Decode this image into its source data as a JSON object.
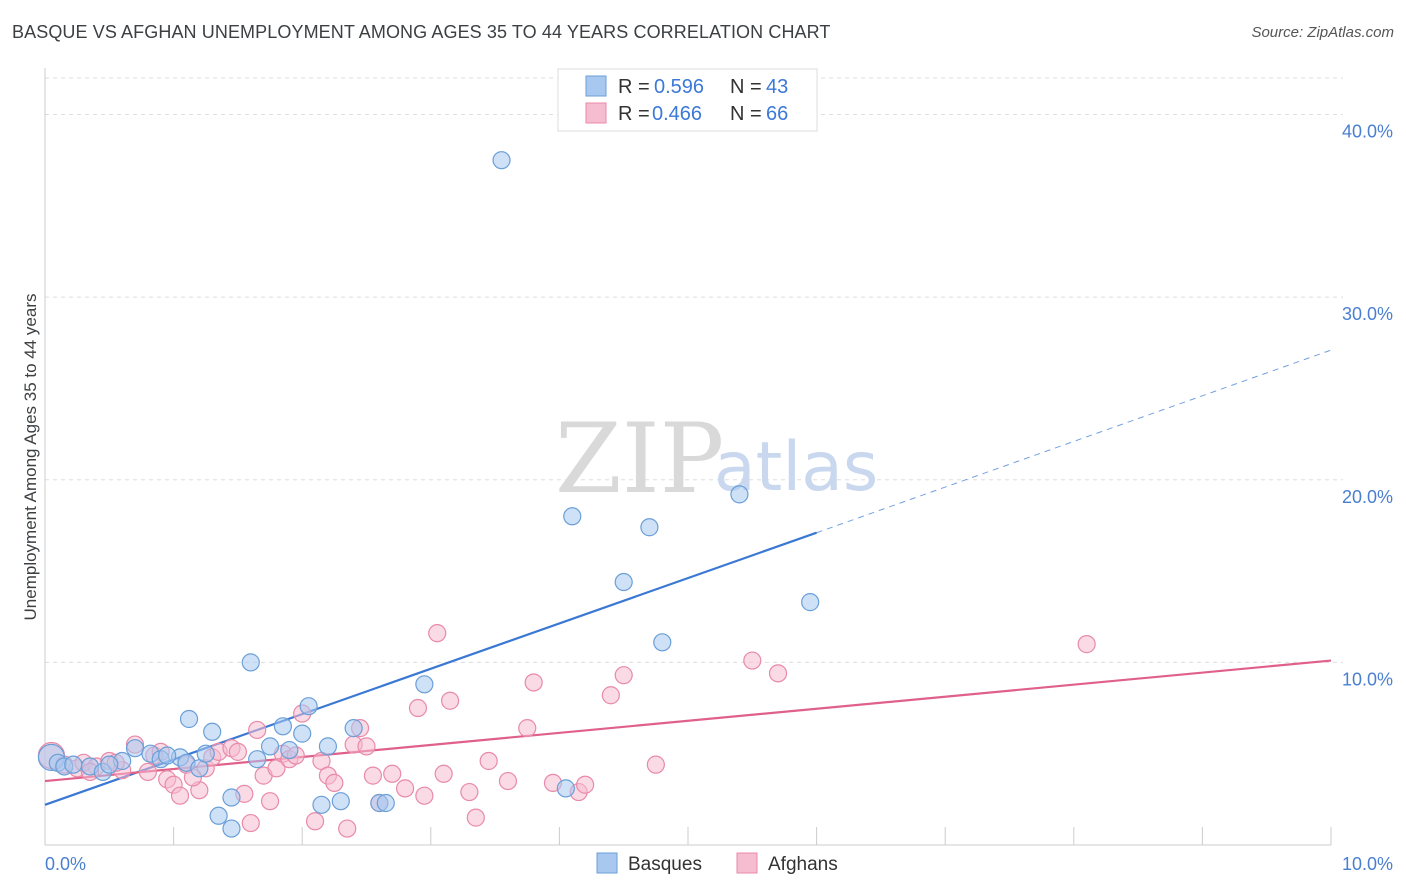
{
  "title": "BASQUE VS AFGHAN UNEMPLOYMENT AMONG AGES 35 TO 44 YEARS CORRELATION CHART",
  "source": "Source: ZipAtlas.com",
  "watermark": {
    "zip": "ZIP",
    "atlas": "atlas"
  },
  "legend_top": {
    "r_label": "R =",
    "n_label": "N =",
    "rows": [
      {
        "series": "Basques",
        "r": "0.596",
        "n": "43"
      },
      {
        "series": "Afghans",
        "r": "0.466",
        "n": "66"
      }
    ]
  },
  "colors": {
    "blue_fill": "#a8c8f0",
    "blue_stroke": "#6a9fd8",
    "blue_line": "#3a78d4",
    "pink_fill": "#f6bcd0",
    "pink_stroke": "#e88aa8",
    "pink_line": "#e0608a",
    "grid": "#dddddd",
    "tick_label": "#4a7fd0"
  },
  "chart_data": {
    "type": "scatter",
    "title": "BASQUE VS AFGHAN UNEMPLOYMENT AMONG AGES 35 TO 44 YEARS CORRELATION CHART",
    "xlabel": "",
    "ylabel": "Unemployment Among Ages 35 to 44 years",
    "xlim": [
      0,
      10
    ],
    "ylim": [
      0,
      42
    ],
    "x_tick_labels": [
      {
        "value": 0,
        "label": "0.0%"
      },
      {
        "value": 10,
        "label": "10.0%"
      }
    ],
    "y_tick_labels": [
      {
        "value": 10,
        "label": "10.0%"
      },
      {
        "value": 20,
        "label": "20.0%"
      },
      {
        "value": 30,
        "label": "30.0%"
      },
      {
        "value": 40,
        "label": "40.0%"
      }
    ],
    "y_grid": [
      10,
      20,
      30,
      40,
      42
    ],
    "x_minor_ticks": [
      1,
      2,
      3,
      4,
      5,
      6,
      7,
      8,
      9,
      10
    ],
    "legend_position": "top-center",
    "series": [
      {
        "name": "Basques",
        "r": 0.596,
        "n": 43,
        "trend": {
          "x0": 0,
          "y0": 2.2,
          "x1": 6,
          "y1": 17.1,
          "dashed_to_x": 10,
          "dashed_to_y": 27.1
        },
        "points": [
          [
            0.05,
            4.8
          ],
          [
            0.1,
            4.5
          ],
          [
            0.15,
            4.3
          ],
          [
            0.22,
            4.4
          ],
          [
            0.35,
            4.3
          ],
          [
            0.45,
            4.0
          ],
          [
            0.6,
            4.6
          ],
          [
            0.7,
            5.3
          ],
          [
            0.82,
            5.0
          ],
          [
            0.9,
            4.7
          ],
          [
            1.05,
            4.8
          ],
          [
            1.1,
            4.5
          ],
          [
            1.2,
            4.2
          ],
          [
            1.12,
            6.9
          ],
          [
            1.3,
            6.2
          ],
          [
            1.35,
            1.6
          ],
          [
            1.45,
            0.9
          ],
          [
            1.45,
            2.6
          ],
          [
            1.6,
            10.0
          ],
          [
            1.65,
            4.7
          ],
          [
            1.75,
            5.4
          ],
          [
            1.85,
            6.5
          ],
          [
            1.9,
            5.2
          ],
          [
            2.0,
            6.1
          ],
          [
            2.05,
            7.6
          ],
          [
            2.15,
            2.2
          ],
          [
            2.2,
            5.4
          ],
          [
            2.3,
            2.4
          ],
          [
            2.4,
            6.4
          ],
          [
            2.6,
            2.3
          ],
          [
            2.65,
            2.3
          ],
          [
            2.95,
            8.8
          ],
          [
            3.55,
            37.5
          ],
          [
            4.05,
            3.1
          ],
          [
            4.1,
            18.0
          ],
          [
            4.5,
            14.4
          ],
          [
            4.7,
            17.4
          ],
          [
            4.8,
            11.1
          ],
          [
            5.4,
            19.2
          ],
          [
            5.95,
            13.3
          ],
          [
            0.5,
            4.4
          ],
          [
            0.95,
            4.9
          ],
          [
            1.25,
            5.0
          ]
        ]
      },
      {
        "name": "Afghans",
        "r": 0.466,
        "n": 66,
        "trend": {
          "x0": 0,
          "y0": 3.5,
          "x1": 10,
          "y1": 10.1
        },
        "points": [
          [
            0.05,
            4.9
          ],
          [
            0.15,
            4.4
          ],
          [
            0.25,
            4.2
          ],
          [
            0.3,
            4.5
          ],
          [
            0.4,
            4.3
          ],
          [
            0.5,
            4.6
          ],
          [
            0.6,
            4.1
          ],
          [
            0.7,
            5.5
          ],
          [
            0.8,
            4.0
          ],
          [
            0.85,
            4.9
          ],
          [
            0.9,
            5.1
          ],
          [
            0.95,
            3.6
          ],
          [
            1.0,
            3.3
          ],
          [
            1.05,
            2.7
          ],
          [
            1.1,
            4.4
          ],
          [
            1.2,
            3.0
          ],
          [
            1.25,
            4.2
          ],
          [
            1.3,
            4.8
          ],
          [
            1.35,
            5.1
          ],
          [
            1.45,
            5.3
          ],
          [
            1.5,
            5.1
          ],
          [
            1.55,
            2.8
          ],
          [
            1.6,
            1.2
          ],
          [
            1.65,
            6.3
          ],
          [
            1.7,
            3.8
          ],
          [
            1.8,
            4.2
          ],
          [
            1.85,
            5.0
          ],
          [
            1.9,
            4.7
          ],
          [
            1.95,
            4.9
          ],
          [
            2.0,
            7.2
          ],
          [
            2.1,
            1.3
          ],
          [
            2.15,
            4.6
          ],
          [
            2.2,
            3.8
          ],
          [
            2.25,
            3.4
          ],
          [
            2.35,
            0.9
          ],
          [
            2.4,
            5.5
          ],
          [
            2.45,
            6.4
          ],
          [
            2.5,
            5.4
          ],
          [
            2.55,
            3.8
          ],
          [
            2.6,
            2.3
          ],
          [
            2.7,
            3.9
          ],
          [
            2.8,
            3.1
          ],
          [
            2.9,
            7.5
          ],
          [
            2.95,
            2.7
          ],
          [
            3.05,
            11.6
          ],
          [
            3.1,
            3.9
          ],
          [
            3.15,
            7.9
          ],
          [
            3.3,
            2.9
          ],
          [
            3.35,
            1.5
          ],
          [
            3.45,
            4.6
          ],
          [
            3.6,
            3.5
          ],
          [
            3.75,
            6.4
          ],
          [
            3.8,
            8.9
          ],
          [
            4.15,
            2.9
          ],
          [
            4.2,
            3.3
          ],
          [
            4.4,
            8.2
          ],
          [
            4.5,
            9.3
          ],
          [
            4.75,
            4.4
          ],
          [
            5.5,
            10.1
          ],
          [
            5.7,
            9.4
          ],
          [
            8.1,
            11.0
          ],
          [
            0.35,
            4.0
          ],
          [
            0.55,
            4.5
          ],
          [
            1.15,
            3.7
          ],
          [
            1.75,
            2.4
          ],
          [
            3.95,
            3.4
          ]
        ]
      }
    ]
  },
  "bottom_legend": [
    {
      "label": "Basques"
    },
    {
      "label": "Afghans"
    }
  ]
}
